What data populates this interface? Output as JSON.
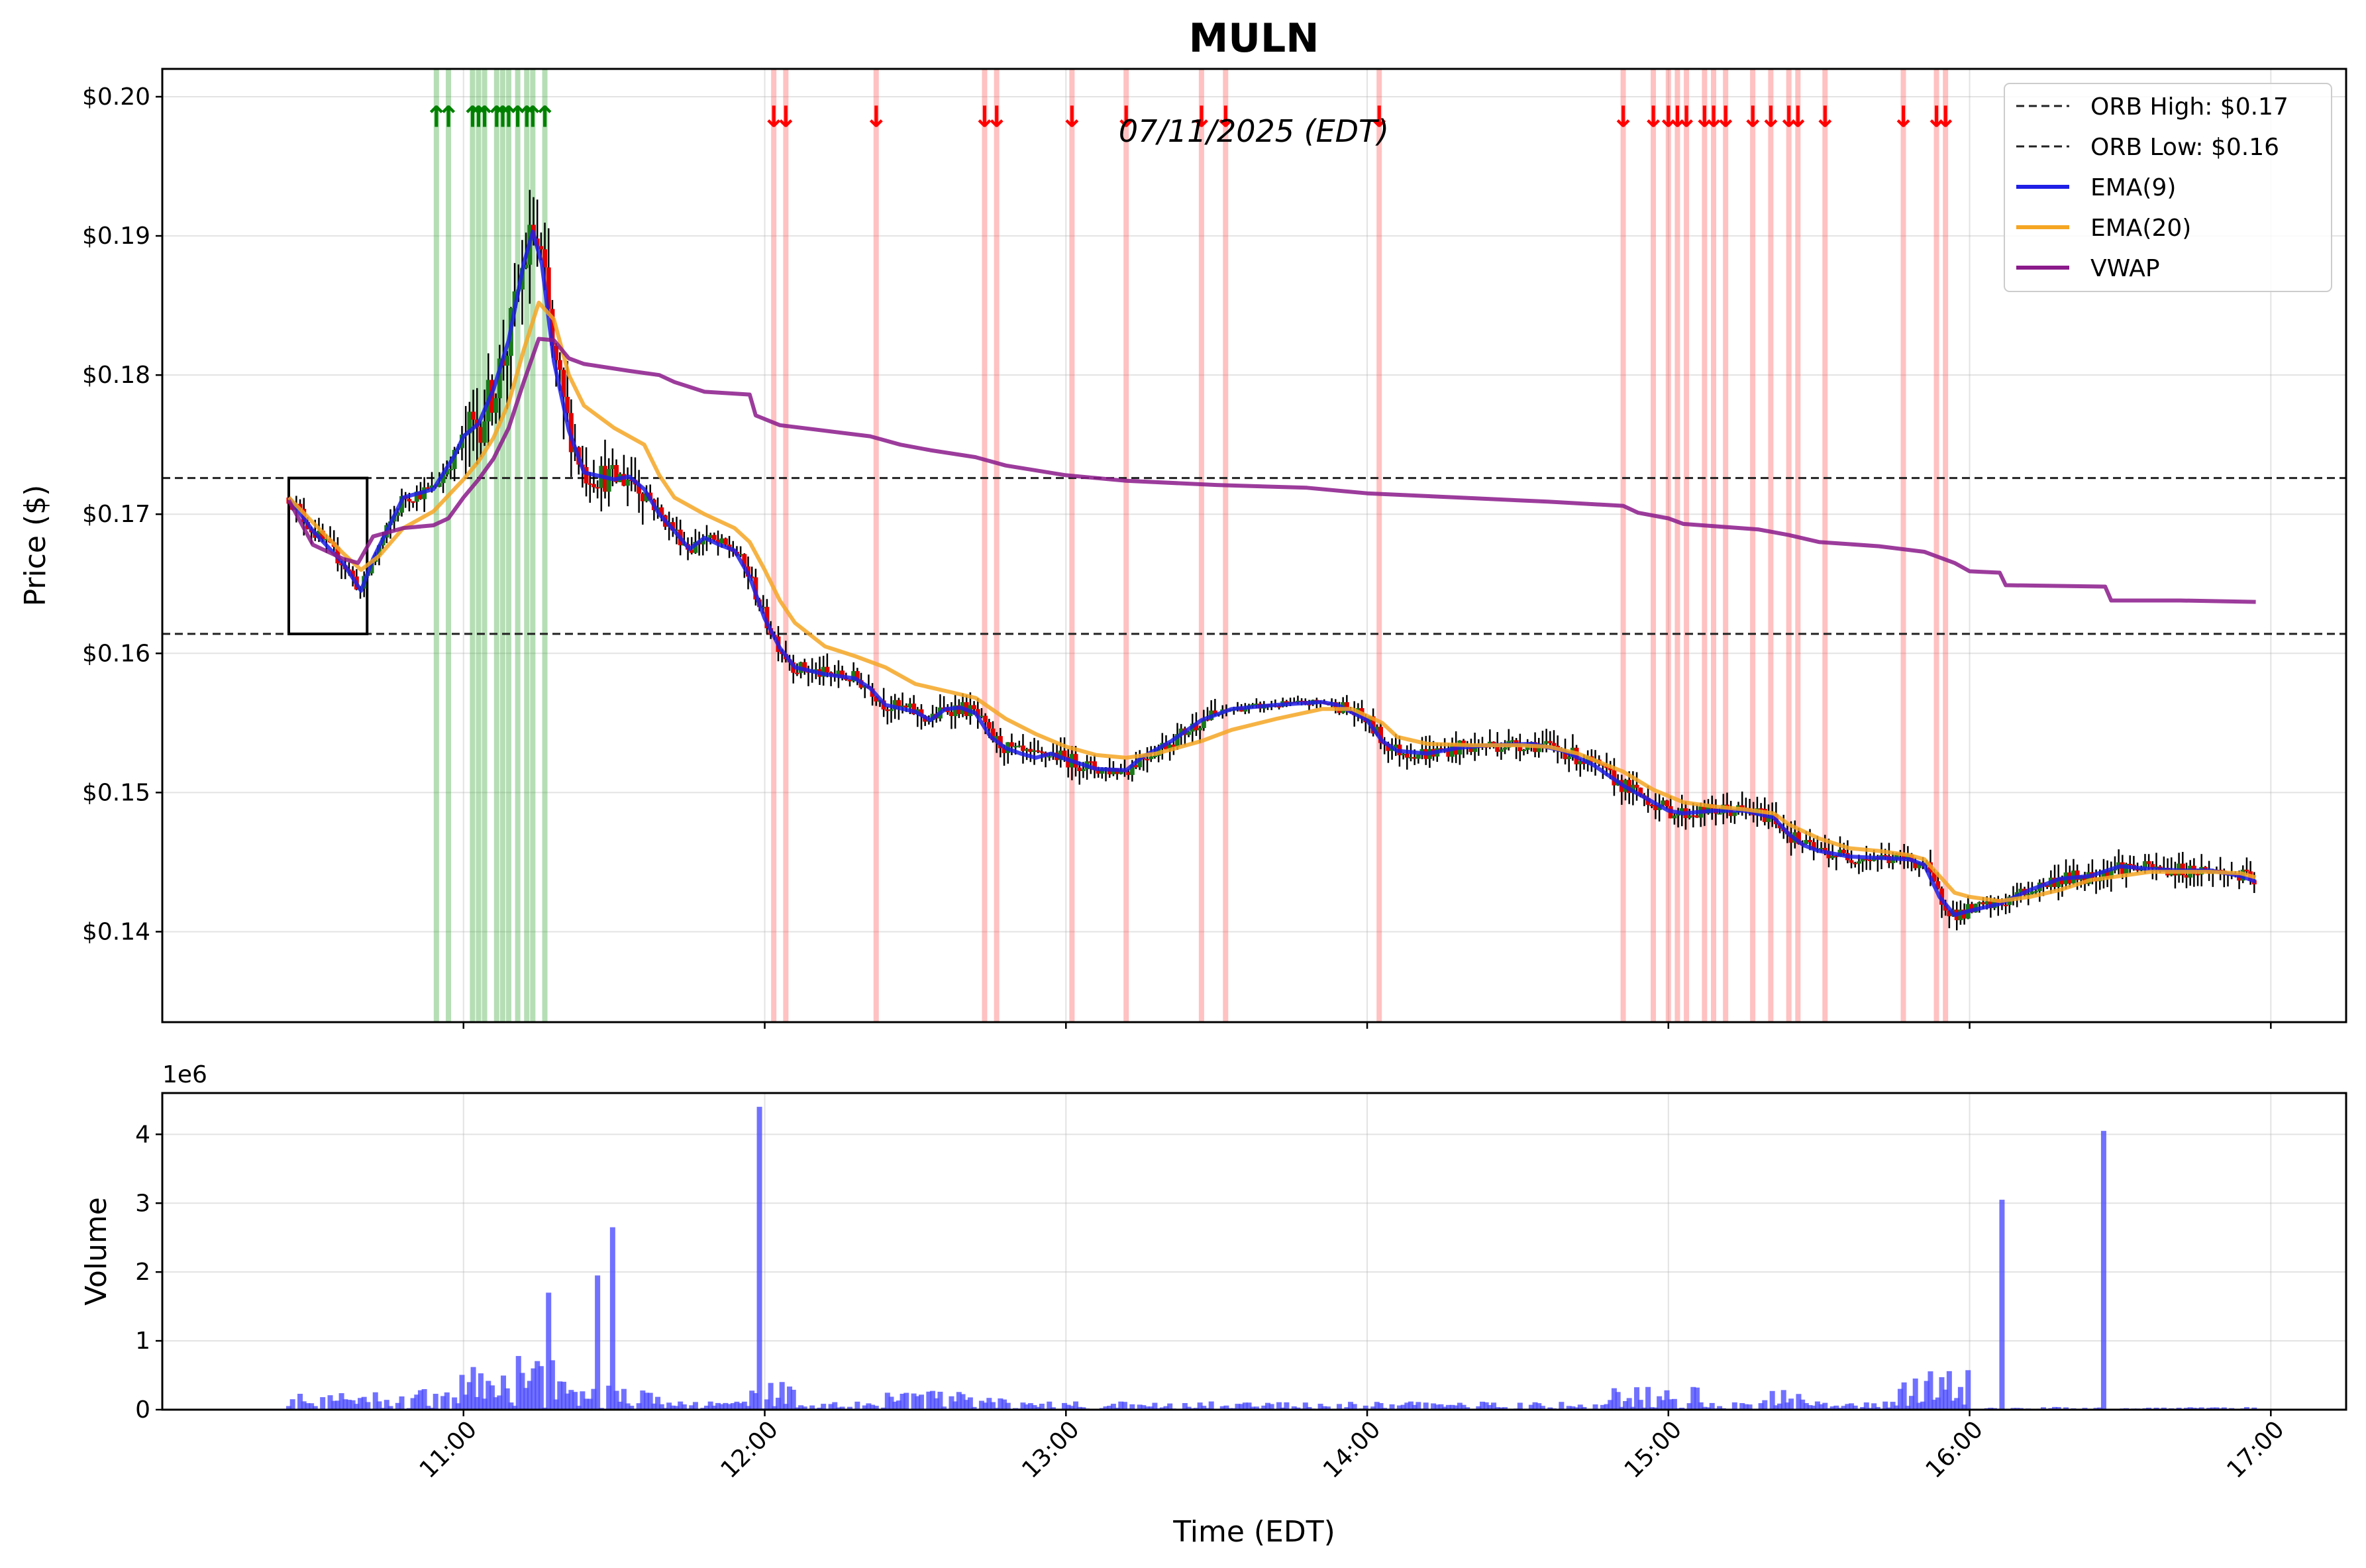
{
  "chart_data": [
    {
      "type": "candlestick",
      "title": "MULN",
      "annotation": "07/11/2025 (EDT)",
      "xlabel": "Time (EDT)",
      "ylabel": "Price ($)",
      "xlim_hours": [
        10.0,
        17.25
      ],
      "ylim": [
        0.1335,
        0.202
      ],
      "y_ticks": [
        0.14,
        0.15,
        0.16,
        0.17,
        0.18,
        0.19,
        0.2
      ],
      "y_tick_labels": [
        "$0.14",
        "$0.15",
        "$0.16",
        "$0.17",
        "$0.18",
        "$0.19",
        "$0.20"
      ],
      "x_ticks": [
        11,
        12,
        13,
        14,
        15,
        16,
        17
      ],
      "x_tick_labels": [
        "11:00",
        "12:00",
        "13:00",
        "14:00",
        "15:00",
        "16:00",
        "17:00"
      ],
      "orb": {
        "high": 0.1726,
        "low": 0.1614,
        "start": 10.42,
        "end": 10.68
      },
      "legend": [
        {
          "label": "ORB High: $0.17",
          "color": "#222222",
          "style": "dashed"
        },
        {
          "label": "ORB Low: $0.16",
          "color": "#222222",
          "style": "dashed"
        },
        {
          "label": "EMA(9)",
          "color": "#1f1fe6",
          "style": "solid"
        },
        {
          "label": "EMA(20)",
          "color": "#f5a623",
          "style": "solid"
        },
        {
          "label": "VWAP",
          "color": "#8b1a8b",
          "style": "solid"
        }
      ],
      "series": [
        {
          "name": "EMA(9)",
          "color": "#1f1fe6",
          "points": [
            [
              10.42,
              0.1712
            ],
            [
              10.5,
              0.1688
            ],
            [
              10.6,
              0.1665
            ],
            [
              10.66,
              0.1645
            ],
            [
              10.7,
              0.1668
            ],
            [
              10.8,
              0.1712
            ],
            [
              10.9,
              0.1718
            ],
            [
              10.97,
              0.1742
            ],
            [
              11.0,
              0.1756
            ],
            [
              11.05,
              0.1765
            ],
            [
              11.1,
              0.179
            ],
            [
              11.15,
              0.1825
            ],
            [
              11.2,
              0.188
            ],
            [
              11.23,
              0.1903
            ],
            [
              11.26,
              0.188
            ],
            [
              11.3,
              0.181
            ],
            [
              11.35,
              0.176
            ],
            [
              11.4,
              0.173
            ],
            [
              11.5,
              0.1725
            ],
            [
              11.55,
              0.1727
            ],
            [
              11.6,
              0.1718
            ],
            [
              11.65,
              0.17
            ],
            [
              11.7,
              0.1688
            ],
            [
              11.75,
              0.1675
            ],
            [
              11.8,
              0.1683
            ],
            [
              11.85,
              0.1678
            ],
            [
              11.9,
              0.1674
            ],
            [
              11.95,
              0.1655
            ],
            [
              12.0,
              0.1625
            ],
            [
              12.05,
              0.1604
            ],
            [
              12.1,
              0.159
            ],
            [
              12.2,
              0.1585
            ],
            [
              12.3,
              0.1582
            ],
            [
              12.35,
              0.1575
            ],
            [
              12.4,
              0.1563
            ],
            [
              12.5,
              0.1558
            ],
            [
              12.55,
              0.1552
            ],
            [
              12.6,
              0.156
            ],
            [
              12.65,
              0.1561
            ],
            [
              12.7,
              0.1557
            ],
            [
              12.75,
              0.154
            ],
            [
              12.8,
              0.1532
            ],
            [
              12.85,
              0.1528
            ],
            [
              12.9,
              0.1525
            ],
            [
              12.95,
              0.1528
            ],
            [
              13.0,
              0.1524
            ],
            [
              13.1,
              0.1517
            ],
            [
              13.2,
              0.1516
            ],
            [
              13.25,
              0.1525
            ],
            [
              13.35,
              0.1537
            ],
            [
              13.45,
              0.1552
            ],
            [
              13.55,
              0.156
            ],
            [
              13.7,
              0.1563
            ],
            [
              13.85,
              0.1565
            ],
            [
              13.9,
              0.1563
            ],
            [
              14.0,
              0.1552
            ],
            [
              14.05,
              0.1537
            ],
            [
              14.1,
              0.153
            ],
            [
              14.2,
              0.1528
            ],
            [
              14.3,
              0.1532
            ],
            [
              14.4,
              0.1534
            ],
            [
              14.55,
              0.1535
            ],
            [
              14.65,
              0.153
            ],
            [
              14.75,
              0.152
            ],
            [
              14.85,
              0.1505
            ],
            [
              14.95,
              0.1493
            ],
            [
              15.0,
              0.1487
            ],
            [
              15.05,
              0.1485
            ],
            [
              15.15,
              0.1487
            ],
            [
              15.25,
              0.1487
            ],
            [
              15.35,
              0.1482
            ],
            [
              15.4,
              0.147
            ],
            [
              15.45,
              0.1462
            ],
            [
              15.5,
              0.1458
            ],
            [
              15.6,
              0.1454
            ],
            [
              15.7,
              0.1453
            ],
            [
              15.8,
              0.1452
            ],
            [
              15.85,
              0.1448
            ],
            [
              15.9,
              0.1425
            ],
            [
              15.95,
              0.1412
            ],
            [
              16.0,
              0.1415
            ],
            [
              16.1,
              0.142
            ],
            [
              16.2,
              0.143
            ],
            [
              16.3,
              0.1438
            ],
            [
              16.4,
              0.144
            ],
            [
              16.5,
              0.1447
            ],
            [
              16.6,
              0.1445
            ],
            [
              16.7,
              0.1444
            ],
            [
              16.8,
              0.1444
            ],
            [
              16.9,
              0.144
            ],
            [
              16.95,
              0.1436
            ]
          ]
        },
        {
          "name": "EMA(20)",
          "color": "#f5a623",
          "points": [
            [
              10.42,
              0.1712
            ],
            [
              10.5,
              0.1694
            ],
            [
              10.6,
              0.1672
            ],
            [
              10.66,
              0.166
            ],
            [
              10.72,
              0.167
            ],
            [
              10.8,
              0.169
            ],
            [
              10.9,
              0.1702
            ],
            [
              11.0,
              0.1725
            ],
            [
              11.05,
              0.1738
            ],
            [
              11.1,
              0.1755
            ],
            [
              11.15,
              0.178
            ],
            [
              11.2,
              0.1818
            ],
            [
              11.25,
              0.1852
            ],
            [
              11.3,
              0.184
            ],
            [
              11.35,
              0.18
            ],
            [
              11.4,
              0.1778
            ],
            [
              11.5,
              0.1762
            ],
            [
              11.6,
              0.175
            ],
            [
              11.65,
              0.1728
            ],
            [
              11.7,
              0.1712
            ],
            [
              11.8,
              0.17
            ],
            [
              11.9,
              0.169
            ],
            [
              11.95,
              0.168
            ],
            [
              12.0,
              0.166
            ],
            [
              12.05,
              0.1638
            ],
            [
              12.1,
              0.1622
            ],
            [
              12.2,
              0.1605
            ],
            [
              12.3,
              0.1598
            ],
            [
              12.4,
              0.159
            ],
            [
              12.5,
              0.1578
            ],
            [
              12.6,
              0.1573
            ],
            [
              12.7,
              0.1568
            ],
            [
              12.8,
              0.1553
            ],
            [
              12.9,
              0.1542
            ],
            [
              13.0,
              0.1533
            ],
            [
              13.1,
              0.1527
            ],
            [
              13.2,
              0.1525
            ],
            [
              13.3,
              0.1528
            ],
            [
              13.45,
              0.1537
            ],
            [
              13.55,
              0.1545
            ],
            [
              13.7,
              0.1553
            ],
            [
              13.85,
              0.156
            ],
            [
              13.95,
              0.156
            ],
            [
              14.05,
              0.155
            ],
            [
              14.1,
              0.154
            ],
            [
              14.2,
              0.1535
            ],
            [
              14.35,
              0.1534
            ],
            [
              14.5,
              0.1534
            ],
            [
              14.6,
              0.1533
            ],
            [
              14.7,
              0.1528
            ],
            [
              14.85,
              0.1515
            ],
            [
              14.95,
              0.1502
            ],
            [
              15.05,
              0.1493
            ],
            [
              15.15,
              0.149
            ],
            [
              15.25,
              0.1488
            ],
            [
              15.35,
              0.1485
            ],
            [
              15.4,
              0.1477
            ],
            [
              15.5,
              0.1467
            ],
            [
              15.6,
              0.146
            ],
            [
              15.7,
              0.1458
            ],
            [
              15.8,
              0.1455
            ],
            [
              15.85,
              0.1452
            ],
            [
              15.9,
              0.144
            ],
            [
              15.95,
              0.1428
            ],
            [
              16.0,
              0.1425
            ],
            [
              16.1,
              0.1422
            ],
            [
              16.2,
              0.1425
            ],
            [
              16.3,
              0.143
            ],
            [
              16.4,
              0.1437
            ],
            [
              16.5,
              0.144
            ],
            [
              16.6,
              0.1443
            ],
            [
              16.7,
              0.1443
            ],
            [
              16.8,
              0.1443
            ],
            [
              16.9,
              0.1442
            ],
            [
              16.95,
              0.1439
            ]
          ]
        },
        {
          "name": "VWAP",
          "color": "#8b1a8b",
          "points": [
            [
              10.42,
              0.171
            ],
            [
              10.5,
              0.1678
            ],
            [
              10.6,
              0.1668
            ],
            [
              10.65,
              0.1665
            ],
            [
              10.7,
              0.1684
            ],
            [
              10.8,
              0.169
            ],
            [
              10.9,
              0.1692
            ],
            [
              10.95,
              0.1697
            ],
            [
              11.0,
              0.1712
            ],
            [
              11.05,
              0.1725
            ],
            [
              11.1,
              0.174
            ],
            [
              11.15,
              0.1762
            ],
            [
              11.2,
              0.1795
            ],
            [
              11.25,
              0.1826
            ],
            [
              11.3,
              0.1825
            ],
            [
              11.35,
              0.1812
            ],
            [
              11.4,
              0.1808
            ],
            [
              11.55,
              0.1803
            ],
            [
              11.65,
              0.18
            ],
            [
              11.7,
              0.1795
            ],
            [
              11.8,
              0.1788
            ],
            [
              11.95,
              0.1786
            ],
            [
              11.97,
              0.1771
            ],
            [
              12.05,
              0.1764
            ],
            [
              12.2,
              0.176
            ],
            [
              12.35,
              0.1756
            ],
            [
              12.45,
              0.175
            ],
            [
              12.55,
              0.1746
            ],
            [
              12.7,
              0.1741
            ],
            [
              12.8,
              0.1735
            ],
            [
              13.0,
              0.1728
            ],
            [
              13.2,
              0.1724
            ],
            [
              13.5,
              0.1721
            ],
            [
              13.8,
              0.1719
            ],
            [
              14.0,
              0.1715
            ],
            [
              14.3,
              0.1712
            ],
            [
              14.6,
              0.1709
            ],
            [
              14.85,
              0.1706
            ],
            [
              14.9,
              0.1701
            ],
            [
              15.0,
              0.1697
            ],
            [
              15.05,
              0.1693
            ],
            [
              15.3,
              0.1689
            ],
            [
              15.4,
              0.1685
            ],
            [
              15.5,
              0.168
            ],
            [
              15.7,
              0.1677
            ],
            [
              15.85,
              0.1673
            ],
            [
              15.95,
              0.1665
            ],
            [
              16.0,
              0.1659
            ],
            [
              16.1,
              0.1658
            ],
            [
              16.12,
              0.1649
            ],
            [
              16.45,
              0.1648
            ],
            [
              16.47,
              0.1638
            ],
            [
              16.7,
              0.1638
            ],
            [
              16.95,
              0.1637
            ]
          ]
        }
      ],
      "buy_signals": [
        10.91,
        10.95,
        11.03,
        11.05,
        11.07,
        11.11,
        11.13,
        11.15,
        11.18,
        11.21,
        11.23,
        11.27
      ],
      "sell_signals": [
        12.03,
        12.07,
        12.37,
        12.73,
        12.77,
        13.02,
        13.2,
        13.45,
        13.53,
        14.04,
        14.85,
        14.95,
        15.0,
        15.03,
        15.06,
        15.12,
        15.15,
        15.19,
        15.28,
        15.34,
        15.4,
        15.43,
        15.52,
        15.78,
        15.89,
        15.92
      ]
    },
    {
      "type": "bar",
      "title": "",
      "xlabel": "Time (EDT)",
      "ylabel": "Volume",
      "offset_label": "1e6",
      "ylim": [
        0,
        4.6
      ],
      "y_ticks": [
        0,
        1,
        2,
        3,
        4
      ],
      "y_tick_labels": [
        "0",
        "1",
        "2",
        "3",
        "4"
      ],
      "bar_color": "#4d4dff",
      "notable_bars": [
        {
          "time": "11:17",
          "volume_millions": 1.7
        },
        {
          "time": "11:27",
          "volume_millions": 1.95
        },
        {
          "time": "11:30",
          "volume_millions": 2.65
        },
        {
          "time": "11:59",
          "volume_millions": 4.4
        },
        {
          "time": "16:07",
          "volume_millions": 3.05
        },
        {
          "time": "16:27",
          "volume_millions": 4.05
        }
      ]
    }
  ]
}
